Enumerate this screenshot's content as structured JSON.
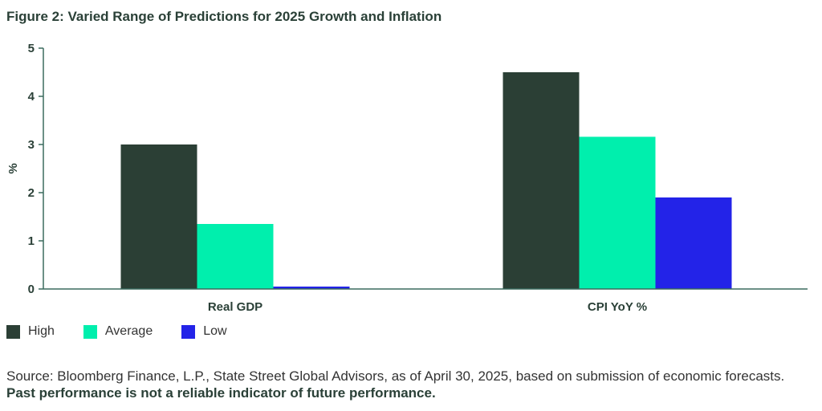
{
  "colors": {
    "high": "#2b3f35",
    "average": "#00efad",
    "low": "#2323e8",
    "axis": "#3b6b5e",
    "text": "#2a4037"
  },
  "source": {
    "text": "Source: Bloomberg Finance, L.P., State Street Global Advisors, as of April 30, 2025, based on submission of economic forecasts.",
    "bold": "Past performance is not a reliable indicator of future performance."
  },
  "chart_data": {
    "type": "bar",
    "title": "Figure 2: Varied Range of Predictions for 2025 Growth and Inflation",
    "xlabel": "",
    "ylabel": "%",
    "ylim": [
      0,
      5
    ],
    "yticks": [
      "0",
      "1",
      "2",
      "3",
      "4",
      "5"
    ],
    "categories": [
      "Real GDP",
      "CPI YoY %"
    ],
    "series": [
      {
        "name": "High",
        "values": [
          3.0,
          4.5
        ]
      },
      {
        "name": "Average",
        "values": [
          1.35,
          3.16
        ]
      },
      {
        "name": "Low",
        "values": [
          0.05,
          1.9
        ]
      }
    ],
    "legend": "bottom-left"
  }
}
